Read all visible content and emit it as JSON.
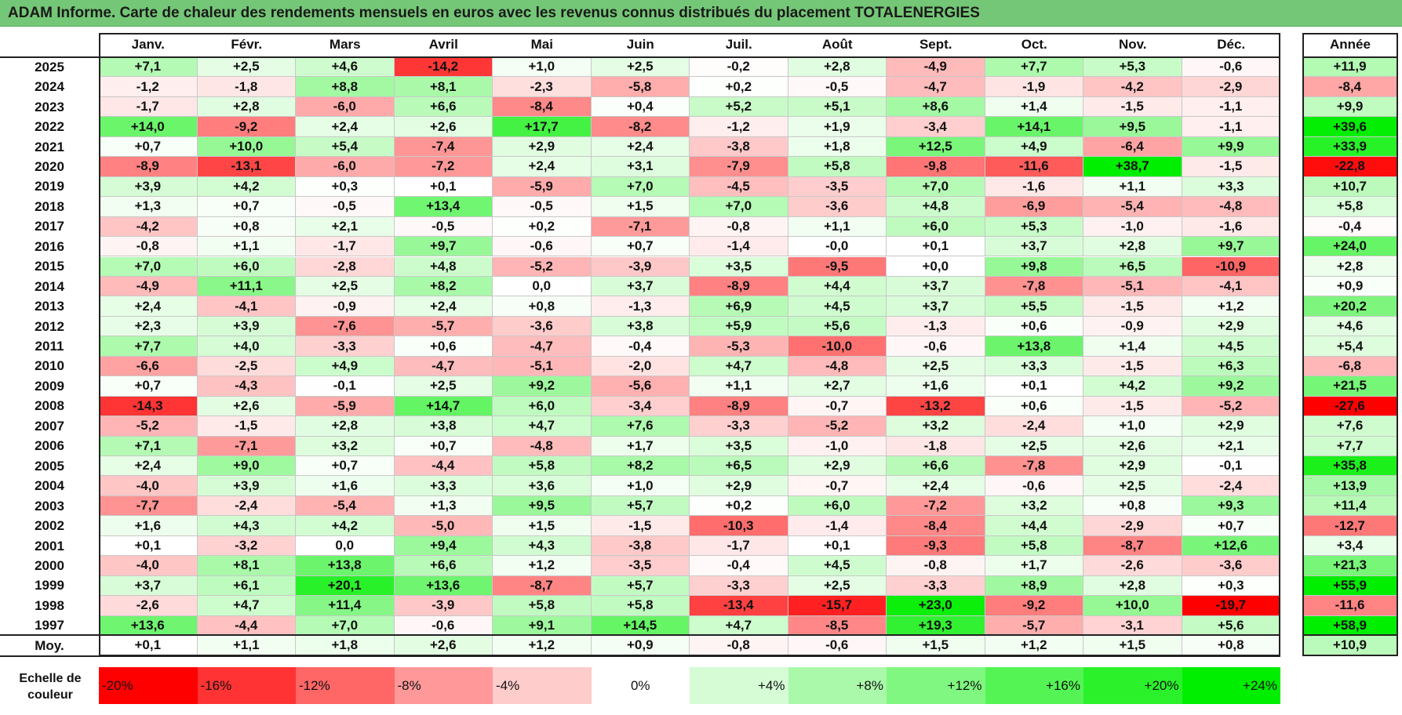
{
  "title": "ADAM Informe. Carte de chaleur des rendements mensuels en euros avec les revenus connus distribués du placement TOTALENERGIES",
  "chart_data": {
    "type": "heatmap",
    "title": "ADAM Informe. Carte de chaleur des rendements mensuels en euros avec les revenus connus distribués du placement TOTALENERGIES",
    "columns": [
      "Janv.",
      "Févr.",
      "Mars",
      "Avril",
      "Mai",
      "Juin",
      "Juil.",
      "Août",
      "Sept.",
      "Oct.",
      "Nov.",
      "Déc."
    ],
    "year_column_label": "Année",
    "rows": [
      {
        "year": "2025",
        "values": [
          "+7,1",
          "+2,5",
          "+4,6",
          "-14,2",
          "+1,0",
          "+2,5",
          "-0,2",
          "+2,8",
          "-4,9",
          "+7,7",
          "+5,3",
          "-0,6"
        ],
        "annual": "+11,9"
      },
      {
        "year": "2024",
        "values": [
          "-1,2",
          "-1,8",
          "+8,8",
          "+8,1",
          "-2,3",
          "-5,8",
          "+0,2",
          "-0,5",
          "-4,7",
          "-1,9",
          "-4,2",
          "-2,9"
        ],
        "annual": "-8,4"
      },
      {
        "year": "2023",
        "values": [
          "-1,7",
          "+2,8",
          "-6,0",
          "+6,6",
          "-8,4",
          "+0,4",
          "+5,2",
          "+5,1",
          "+8,6",
          "+1,4",
          "-1,5",
          "-1,1"
        ],
        "annual": "+9,9"
      },
      {
        "year": "2022",
        "values": [
          "+14,0",
          "-9,2",
          "+2,4",
          "+2,6",
          "+17,7",
          "-8,2",
          "-1,2",
          "+1,9",
          "-3,4",
          "+14,1",
          "+9,5",
          "-1,1"
        ],
        "annual": "+39,6"
      },
      {
        "year": "2021",
        "values": [
          "+0,7",
          "+10,0",
          "+5,4",
          "-7,4",
          "+2,9",
          "+2,4",
          "-3,8",
          "+1,8",
          "+12,5",
          "+4,9",
          "-6,4",
          "+9,9"
        ],
        "annual": "+33,9"
      },
      {
        "year": "2020",
        "values": [
          "-8,9",
          "-13,1",
          "-6,0",
          "-7,2",
          "+2,4",
          "+3,1",
          "-7,9",
          "+5,8",
          "-9,8",
          "-11,6",
          "+38,7",
          "-1,5"
        ],
        "annual": "-22,8"
      },
      {
        "year": "2019",
        "values": [
          "+3,9",
          "+4,2",
          "+0,3",
          "+0,1",
          "-5,9",
          "+7,0",
          "-4,5",
          "-3,5",
          "+7,0",
          "-1,6",
          "+1,1",
          "+3,3"
        ],
        "annual": "+10,7"
      },
      {
        "year": "2018",
        "values": [
          "+1,3",
          "+0,7",
          "-0,5",
          "+13,4",
          "-0,5",
          "+1,5",
          "+7,0",
          "-3,6",
          "+4,8",
          "-6,9",
          "-5,4",
          "-4,8"
        ],
        "annual": "+5,8"
      },
      {
        "year": "2017",
        "values": [
          "-4,2",
          "+0,8",
          "+2,1",
          "-0,5",
          "+0,2",
          "-7,1",
          "-0,8",
          "+1,1",
          "+6,0",
          "+5,3",
          "-1,0",
          "-1,6"
        ],
        "annual": "-0,4"
      },
      {
        "year": "2016",
        "values": [
          "-0,8",
          "+1,1",
          "-1,7",
          "+9,7",
          "-0,6",
          "+0,7",
          "-1,4",
          "-0,0",
          "+0,1",
          "+3,7",
          "+2,8",
          "+9,7"
        ],
        "annual": "+24,0"
      },
      {
        "year": "2015",
        "values": [
          "+7,0",
          "+6,0",
          "-2,8",
          "+4,8",
          "-5,2",
          "-3,9",
          "+3,5",
          "-9,5",
          "+0,0",
          "+9,8",
          "+6,5",
          "-10,9"
        ],
        "annual": "+2,8"
      },
      {
        "year": "2014",
        "values": [
          "-4,9",
          "+11,1",
          "+2,5",
          "+8,2",
          "0,0",
          "+3,7",
          "-8,9",
          "+4,4",
          "+3,7",
          "-7,8",
          "-5,1",
          "-4,1"
        ],
        "annual": "+0,9"
      },
      {
        "year": "2013",
        "values": [
          "+2,4",
          "-4,1",
          "-0,9",
          "+2,4",
          "+0,8",
          "-1,3",
          "+6,9",
          "+4,5",
          "+3,7",
          "+5,5",
          "-1,5",
          "+1,2"
        ],
        "annual": "+20,2"
      },
      {
        "year": "2012",
        "values": [
          "+2,3",
          "+3,9",
          "-7,6",
          "-5,7",
          "-3,6",
          "+3,8",
          "+5,9",
          "+5,6",
          "-1,3",
          "+0,6",
          "-0,9",
          "+2,9"
        ],
        "annual": "+4,6"
      },
      {
        "year": "2011",
        "values": [
          "+7,7",
          "+4,0",
          "-3,3",
          "+0,6",
          "-4,7",
          "-0,4",
          "-5,3",
          "-10,0",
          "-0,6",
          "+13,8",
          "+1,4",
          "+4,5"
        ],
        "annual": "+5,4"
      },
      {
        "year": "2010",
        "values": [
          "-6,6",
          "-2,5",
          "+4,9",
          "-4,7",
          "-5,1",
          "-2,0",
          "+4,7",
          "-4,8",
          "+2,5",
          "+3,3",
          "-1,5",
          "+6,3"
        ],
        "annual": "-6,8"
      },
      {
        "year": "2009",
        "values": [
          "+0,7",
          "-4,3",
          "-0,1",
          "+2,5",
          "+9,2",
          "-5,6",
          "+1,1",
          "+2,7",
          "+1,6",
          "+0,1",
          "+4,2",
          "+9,2"
        ],
        "annual": "+21,5"
      },
      {
        "year": "2008",
        "values": [
          "-14,3",
          "+2,6",
          "-5,9",
          "+14,7",
          "+6,0",
          "-3,4",
          "-8,9",
          "-0,7",
          "-13,2",
          "+0,6",
          "-1,5",
          "-5,2"
        ],
        "annual": "-27,6"
      },
      {
        "year": "2007",
        "values": [
          "-5,2",
          "-1,5",
          "+2,8",
          "+3,8",
          "+4,7",
          "+7,6",
          "-3,3",
          "-5,2",
          "+3,2",
          "-2,4",
          "+1,0",
          "+2,9"
        ],
        "annual": "+7,6"
      },
      {
        "year": "2006",
        "values": [
          "+7,1",
          "-7,1",
          "+3,2",
          "+0,7",
          "-4,8",
          "+1,7",
          "+3,5",
          "-1,0",
          "-1,8",
          "+2,5",
          "+2,6",
          "+2,1"
        ],
        "annual": "+7,7"
      },
      {
        "year": "2005",
        "values": [
          "+2,4",
          "+9,0",
          "+0,7",
          "-4,4",
          "+5,8",
          "+8,2",
          "+6,5",
          "+2,9",
          "+6,6",
          "-7,8",
          "+2,9",
          "-0,1"
        ],
        "annual": "+35,8"
      },
      {
        "year": "2004",
        "values": [
          "-4,0",
          "+3,9",
          "+1,6",
          "+3,3",
          "+3,6",
          "+1,0",
          "+2,9",
          "-0,7",
          "+2,4",
          "-0,6",
          "+2,5",
          "-2,4"
        ],
        "annual": "+13,9"
      },
      {
        "year": "2003",
        "values": [
          "-7,7",
          "-2,4",
          "-5,4",
          "+1,3",
          "+9,5",
          "+5,7",
          "+0,2",
          "+6,0",
          "-7,2",
          "+3,2",
          "+0,8",
          "+9,3"
        ],
        "annual": "+11,4"
      },
      {
        "year": "2002",
        "values": [
          "+1,6",
          "+4,3",
          "+4,2",
          "-5,0",
          "+1,5",
          "-1,5",
          "-10,3",
          "-1,4",
          "-8,4",
          "+4,4",
          "-2,9",
          "+0,7"
        ],
        "annual": "-12,7"
      },
      {
        "year": "2001",
        "values": [
          "+0,1",
          "-3,2",
          "0,0",
          "+9,4",
          "+4,3",
          "-3,8",
          "-1,7",
          "+0,1",
          "-9,3",
          "+5,8",
          "-8,7",
          "+12,6"
        ],
        "annual": "+3,4"
      },
      {
        "year": "2000",
        "values": [
          "-4,0",
          "+8,1",
          "+13,8",
          "+6,6",
          "+1,2",
          "-3,5",
          "-0,4",
          "+4,5",
          "-0,8",
          "+1,7",
          "-2,6",
          "-3,6"
        ],
        "annual": "+21,3"
      },
      {
        "year": "1999",
        "values": [
          "+3,7",
          "+6,1",
          "+20,1",
          "+13,6",
          "-8,7",
          "+5,7",
          "-3,3",
          "+2,5",
          "-3,3",
          "+8,9",
          "+2,8",
          "+0,3"
        ],
        "annual": "+55,9"
      },
      {
        "year": "1998",
        "values": [
          "-2,6",
          "+4,7",
          "+11,4",
          "-3,9",
          "+5,8",
          "+5,8",
          "-13,4",
          "-15,7",
          "+23,0",
          "-9,2",
          "+10,0",
          "-19,7"
        ],
        "annual": "-11,6"
      },
      {
        "year": "1997",
        "values": [
          "+13,6",
          "-4,4",
          "+7,0",
          "-0,6",
          "+9,1",
          "+14,5",
          "+4,7",
          "-8,5",
          "+19,3",
          "-5,7",
          "-3,1",
          "+5,6"
        ],
        "annual": "+58,9"
      }
    ],
    "average": {
      "label": "Moy.",
      "values": [
        "+0,1",
        "+1,1",
        "+1,8",
        "+2,6",
        "+1,2",
        "+0,9",
        "-0,8",
        "-0,6",
        "+1,5",
        "+1,2",
        "+1,5",
        "+0,8"
      ],
      "annual": "+10,9"
    },
    "color_scale": {
      "label_line1": "Echelle de",
      "label_line2": "couleur",
      "stops": [
        "-20%",
        "-16%",
        "-12%",
        "-8%",
        "-4%",
        "0%",
        "+4%",
        "+8%",
        "+12%",
        "+16%",
        "+20%",
        "+24%"
      ],
      "stop_values": [
        -20,
        -16,
        -12,
        -8,
        -4,
        0,
        4,
        8,
        12,
        16,
        20,
        24
      ],
      "negative_color": "#ff0000",
      "neutral_color": "#ffffff",
      "positive_color": "#00ee00"
    }
  }
}
